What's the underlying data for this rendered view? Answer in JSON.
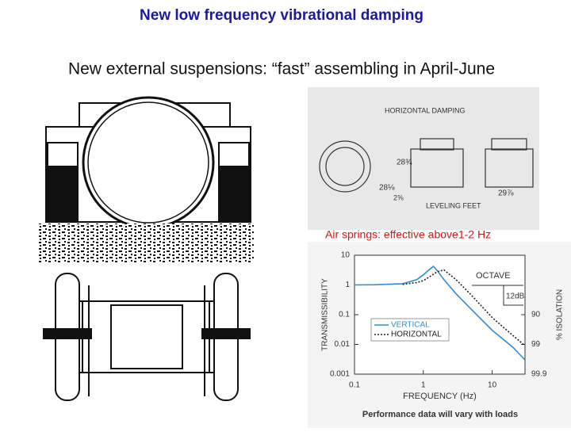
{
  "header": {
    "title": "New low frequency vibrational damping",
    "subtitle": "New external suspensions: “fast” assembling in April-June"
  },
  "diagram": {
    "labels": [
      "HORIZONTAL DAMPING",
      "28¾",
      "28⅛",
      "2⅝",
      "LEVELING FEET",
      "29⅞"
    ],
    "caption": "Air springs: effective above1-2 Hz"
  },
  "chart_data": {
    "type": "line",
    "xlabel": "FREQUENCY (Hz)",
    "ylabel": "TRANSMISSIBILITY",
    "y2label": "% ISOLATION",
    "note": "Performance data will vary with loads",
    "annotations": [
      "OCTAVE",
      "12dB"
    ],
    "log_x": true,
    "log_y": true,
    "x": [
      0.1,
      0.2,
      0.5,
      0.8,
      1,
      1.2,
      1.4,
      1.6,
      2,
      3,
      5,
      10,
      20,
      30
    ],
    "series": [
      {
        "name": "VERTICAL",
        "color": "#2e8fd0",
        "dash": false,
        "values": [
          1,
          1.02,
          1.1,
          1.5,
          2.2,
          3.2,
          4.2,
          3,
          1.5,
          0.5,
          0.15,
          0.03,
          0.008,
          0.003
        ]
      },
      {
        "name": "HORIZONTAL",
        "color": "#222222",
        "dash": true,
        "values": [
          null,
          null,
          1.05,
          1.2,
          1.4,
          1.8,
          2.3,
          2.8,
          3.2,
          1.5,
          0.45,
          0.08,
          0.02,
          0.009
        ]
      }
    ],
    "xlim": [
      0.1,
      30
    ],
    "xticks": [
      0.1,
      1,
      10
    ],
    "ylim": [
      0.001,
      10
    ],
    "yticks": [
      0.001,
      0.01,
      0.1,
      1,
      10
    ],
    "y2lim": [
      99.9,
      -900
    ],
    "y2ticks": [
      90,
      99,
      99.9
    ]
  }
}
